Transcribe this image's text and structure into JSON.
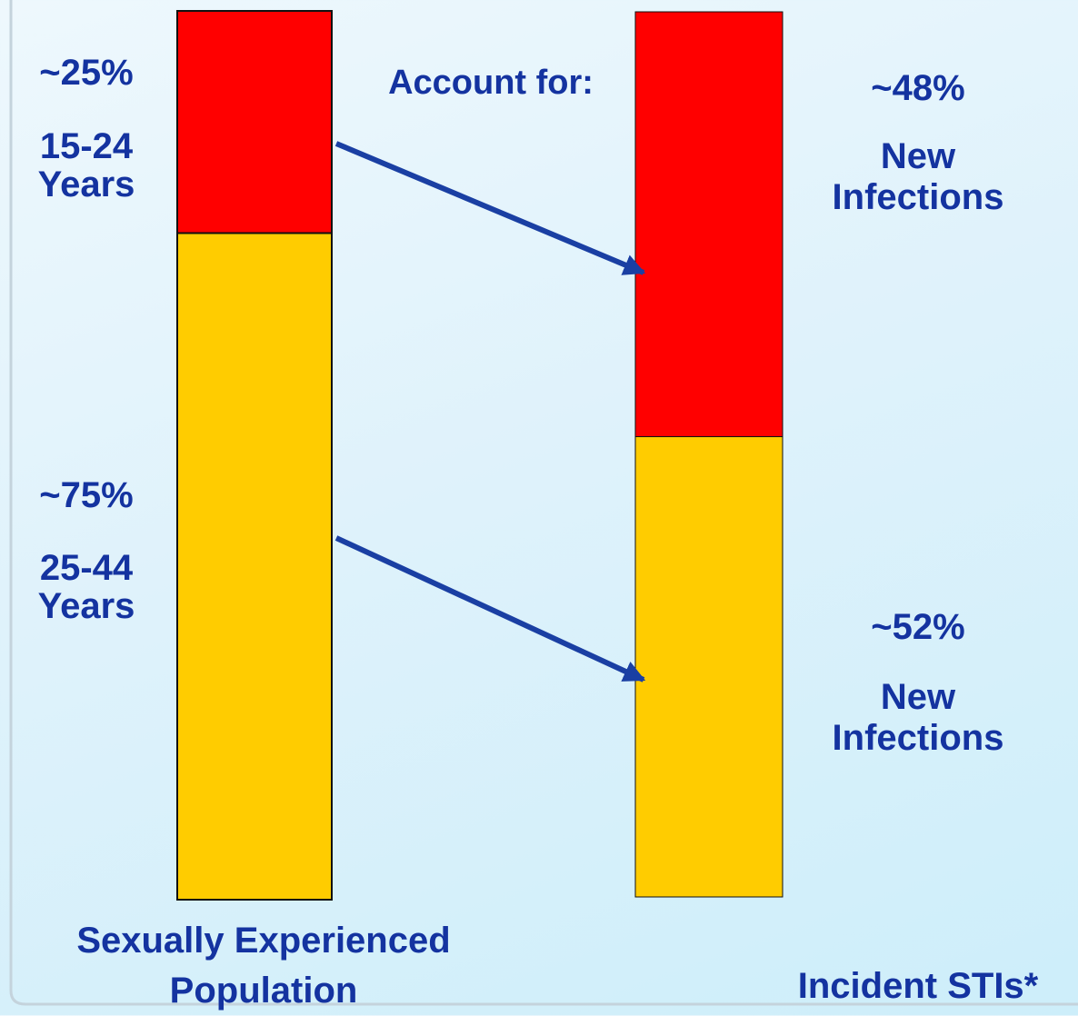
{
  "chart_data": {
    "type": "bar",
    "stacked": true,
    "annotation": "Account for:",
    "categories": [
      "Sexually Experienced Population",
      "Incident STIs*"
    ],
    "series": [
      {
        "color": "#ff0000",
        "values": [
          25,
          48
        ],
        "value_labels": [
          "~25%",
          "~48%"
        ],
        "labels": [
          "15-24 Years",
          "New Infections"
        ]
      },
      {
        "color": "#ffcc00",
        "values": [
          75,
          52
        ],
        "value_labels": [
          "~75%",
          "~52%"
        ],
        "labels": [
          "25-44 Years",
          "New Infections"
        ]
      }
    ]
  }
}
